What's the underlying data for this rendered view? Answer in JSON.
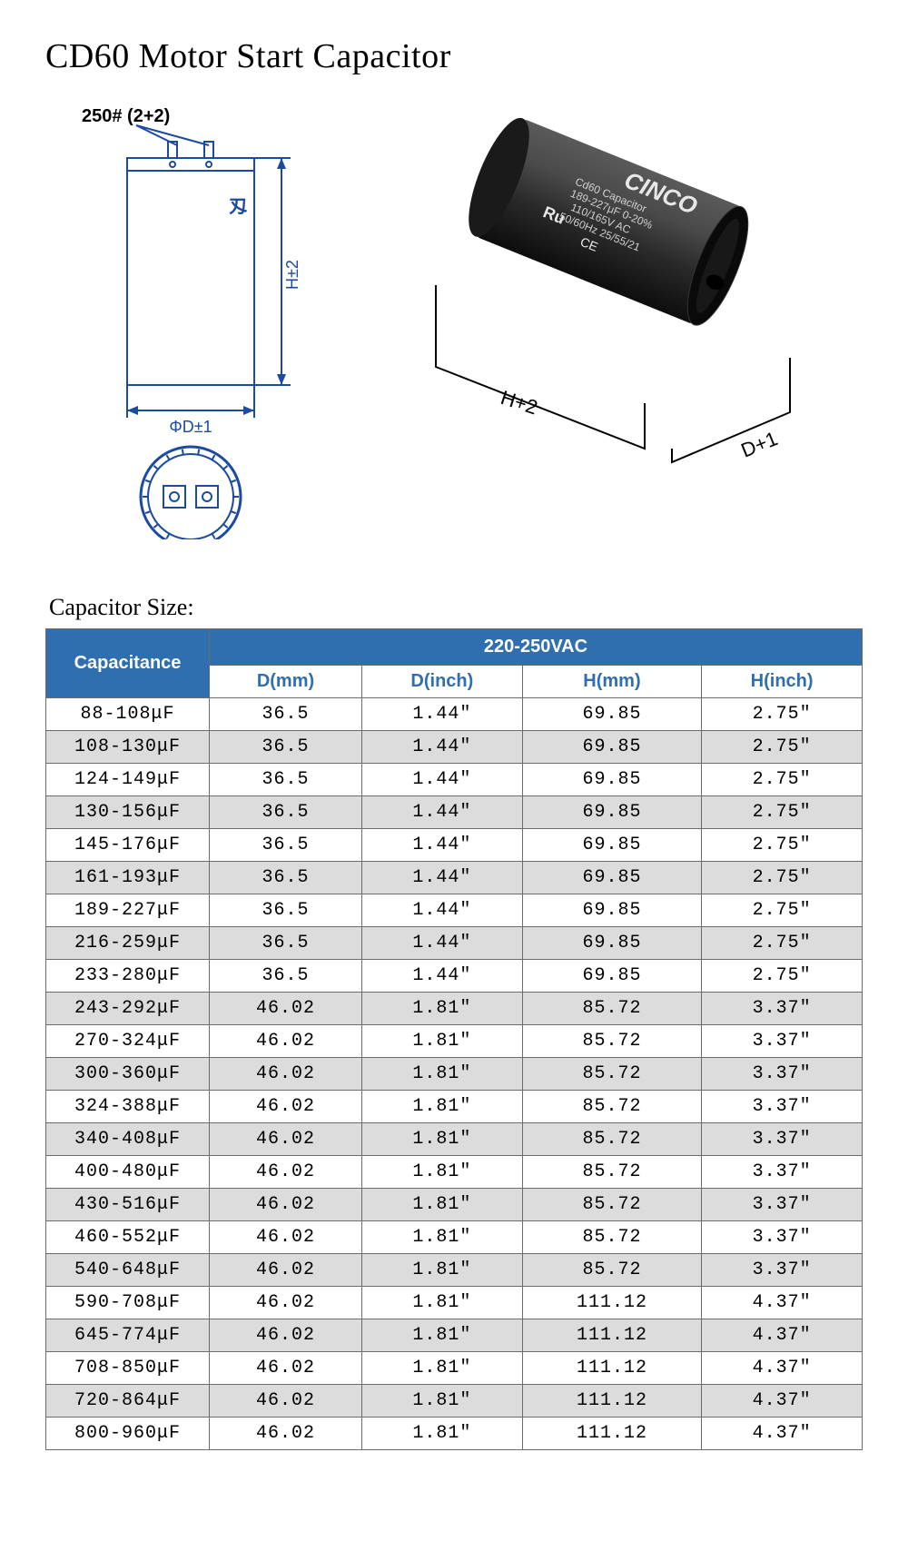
{
  "title": "CD60 Motor Start Capacitor",
  "diagram": {
    "terminal_label": "250# (2+2)",
    "height_label": "H±2",
    "diameter_label": "ΦD±1",
    "photo_h_label": "H+2",
    "photo_d_label": "D+1",
    "brand": "CINCO",
    "product_line1": "Cd60 Capacitor",
    "product_line2": "189-227μF 0-20%",
    "product_line3": "110/165V AC",
    "product_line4": "50/60Hz 25/55/21",
    "cert1": "Ru",
    "cert2": "CE",
    "line_color": "#1b4aa0",
    "photo_body": "#2a2a2a",
    "photo_body_light": "#4a4a4a"
  },
  "table": {
    "caption": "Capacitor Size:",
    "header_bg": "#2f6fb0",
    "header_fg": "#ffffff",
    "subheader_bg": "#ffffff",
    "subheader_fg": "#2f6fb0",
    "row_even_bg": "#ffffff",
    "row_odd_bg": "#dcdcdc",
    "col_cap_label": "Capacitance",
    "col_voltage_label": "220-250VAC",
    "columns": [
      "D(mm)",
      "D(inch)",
      "H(mm)",
      "H(inch)"
    ],
    "rows": [
      [
        "88-108μF",
        "36.5",
        "1.44″",
        "69.85",
        "2.75″"
      ],
      [
        "108-130μF",
        "36.5",
        "1.44″",
        "69.85",
        "2.75″"
      ],
      [
        "124-149μF",
        "36.5",
        "1.44″",
        "69.85",
        "2.75″"
      ],
      [
        "130-156μF",
        "36.5",
        "1.44″",
        "69.85",
        "2.75″"
      ],
      [
        "145-176μF",
        "36.5",
        "1.44″",
        "69.85",
        "2.75″"
      ],
      [
        "161-193μF",
        "36.5",
        "1.44″",
        "69.85",
        "2.75″"
      ],
      [
        "189-227μF",
        "36.5",
        "1.44″",
        "69.85",
        "2.75″"
      ],
      [
        "216-259μF",
        "36.5",
        "1.44″",
        "69.85",
        "2.75″"
      ],
      [
        "233-280μF",
        "36.5",
        "1.44″",
        "69.85",
        "2.75″"
      ],
      [
        "243-292μF",
        "46.02",
        "1.81″",
        "85.72",
        "3.37″"
      ],
      [
        "270-324μF",
        "46.02",
        "1.81″",
        "85.72",
        "3.37″"
      ],
      [
        "300-360μF",
        "46.02",
        "1.81″",
        "85.72",
        "3.37″"
      ],
      [
        "324-388μF",
        "46.02",
        "1.81″",
        "85.72",
        "3.37″"
      ],
      [
        "340-408μF",
        "46.02",
        "1.81″",
        "85.72",
        "3.37″"
      ],
      [
        "400-480μF",
        "46.02",
        "1.81″",
        "85.72",
        "3.37″"
      ],
      [
        "430-516μF",
        "46.02",
        "1.81″",
        "85.72",
        "3.37″"
      ],
      [
        "460-552μF",
        "46.02",
        "1.81″",
        "85.72",
        "3.37″"
      ],
      [
        "540-648μF",
        "46.02",
        "1.81″",
        "85.72",
        "3.37″"
      ],
      [
        "590-708μF",
        "46.02",
        "1.81″",
        "111.12",
        "4.37″"
      ],
      [
        "645-774μF",
        "46.02",
        "1.81″",
        "111.12",
        "4.37″"
      ],
      [
        "708-850μF",
        "46.02",
        "1.81″",
        "111.12",
        "4.37″"
      ],
      [
        "720-864μF",
        "46.02",
        "1.81″",
        "111.12",
        "4.37″"
      ],
      [
        "800-960μF",
        "46.02",
        "1.81″",
        "111.12",
        "4.37″"
      ]
    ]
  }
}
